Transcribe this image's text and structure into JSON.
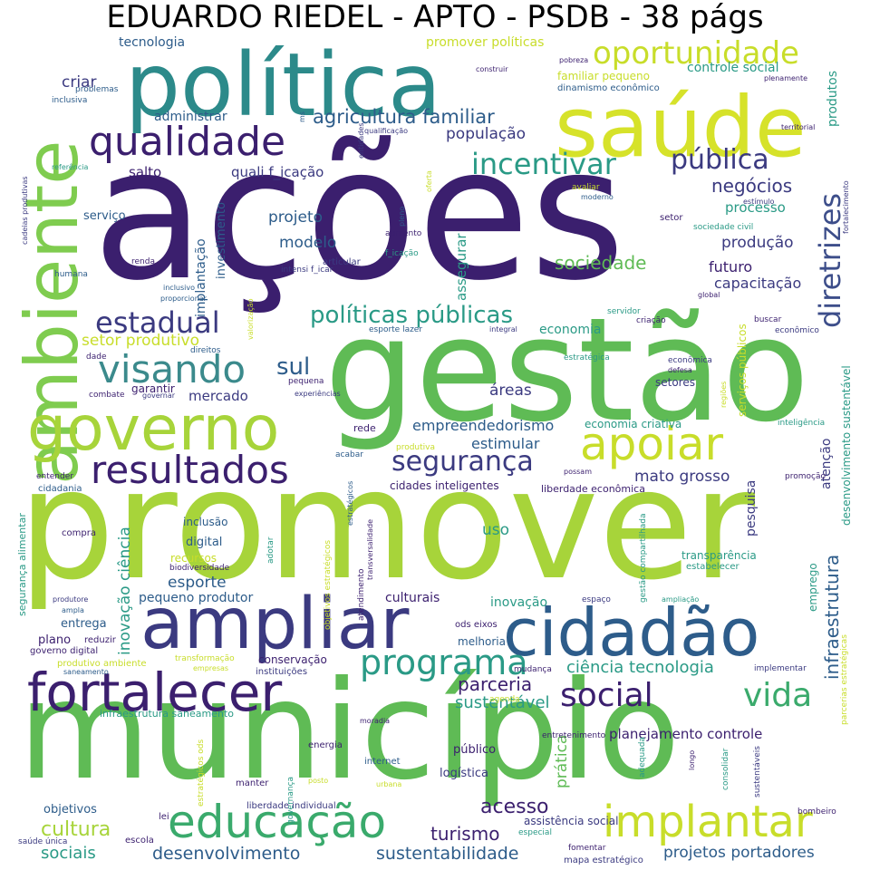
{
  "title": "EDUARDO RIEDEL - APTO - PSDB - 38 págs",
  "palette": {
    "background": "#ffffff",
    "colors": [
      "#440154",
      "#482878",
      "#3e4a89",
      "#31688e",
      "#26828e",
      "#1f9e89",
      "#35b779",
      "#6ece58",
      "#b5de2b",
      "#fde725"
    ]
  },
  "words": [
    {
      "text": "ações",
      "color": "#3b1f6e"
    },
    {
      "text": "promover",
      "color": "#a7d43a"
    },
    {
      "text": "município",
      "color": "#5fbb55"
    },
    {
      "text": "gestão",
      "color": "#5fbb55"
    },
    {
      "text": "política",
      "color": "#2c8a8a"
    },
    {
      "text": "saúde",
      "color": "#d6e22a"
    },
    {
      "text": "ambiente",
      "color": "#7fcc4f"
    },
    {
      "text": "governo",
      "color": "#a7d43a"
    },
    {
      "text": "ampliar",
      "color": "#3b3a80"
    },
    {
      "text": "cidadão",
      "color": "#2d5c8a"
    },
    {
      "text": "fortalecer",
      "color": "#3b1f6e"
    },
    {
      "text": "educação",
      "color": "#3aaa6c"
    },
    {
      "text": "implantar",
      "color": "#c8dd2a"
    },
    {
      "text": "qualidade",
      "color": "#3b1f6e"
    },
    {
      "text": "oportunidade",
      "color": "#c8dd2a"
    },
    {
      "text": "apoiar",
      "color": "#c8dd2a"
    },
    {
      "text": "visando",
      "color": "#3b8a8c"
    },
    {
      "text": "resultados",
      "color": "#3b1f6e"
    },
    {
      "text": "programa",
      "color": "#2a9a86"
    },
    {
      "text": "incentivar",
      "color": "#2a9a86"
    },
    {
      "text": "diretrizes",
      "color": "#3d4e8a"
    },
    {
      "text": "pública",
      "color": "#3b3a80"
    },
    {
      "text": "estadual",
      "color": "#3b3a80"
    },
    {
      "text": "segurança",
      "color": "#3b3a80"
    },
    {
      "text": "social",
      "color": "#3b1f6e"
    },
    {
      "text": "vida",
      "color": "#3aaa6c"
    },
    {
      "text": "políticas públicas",
      "color": "#2a9a86"
    },
    {
      "text": "agricultura familiar",
      "color": "#2d5c8a"
    },
    {
      "text": "sul",
      "color": "#2d5c8a"
    },
    {
      "text": "negócios",
      "color": "#3b3a80"
    },
    {
      "text": "sociedade",
      "color": "#5fbb55"
    },
    {
      "text": "parceria",
      "color": "#3b1f6e"
    },
    {
      "text": "ciência tecnologia",
      "color": "#2a9a86"
    },
    {
      "text": "infraestrutura",
      "color": "#2d5c8a"
    },
    {
      "text": "cultura",
      "color": "#a7d43a"
    },
    {
      "text": "turismo",
      "color": "#3b1f6e"
    },
    {
      "text": "acesso",
      "color": "#3b1f6e"
    },
    {
      "text": "desenvolvimento",
      "color": "#2d5c8a"
    },
    {
      "text": "sustentabilidade",
      "color": "#2d5c8a"
    },
    {
      "text": "projetos portadores",
      "color": "#2d5c8a"
    },
    {
      "text": "sociais",
      "color": "#2a9a86"
    },
    {
      "text": "assistência social",
      "color": "#3b3a80"
    },
    {
      "text": "sustentável",
      "color": "#2a9a86"
    },
    {
      "text": "planejamento controle",
      "color": "#3b1f6e"
    },
    {
      "text": "inovação ciência",
      "color": "#2a9a86"
    },
    {
      "text": "esporte",
      "color": "#2d5c8a"
    },
    {
      "text": "empreendedorismo",
      "color": "#2d5c8a"
    },
    {
      "text": "estimular",
      "color": "#2d5c8a"
    },
    {
      "text": "mato grosso",
      "color": "#3b3a80"
    },
    {
      "text": "mercado",
      "color": "#3b3a80"
    },
    {
      "text": "setor produtivo",
      "color": "#c8dd2a"
    },
    {
      "text": "economia",
      "color": "#2a9a86"
    },
    {
      "text": "áreas",
      "color": "#3b3a80"
    },
    {
      "text": "projeto",
      "color": "#2d5c8a"
    },
    {
      "text": "modelo",
      "color": "#2d5c8a"
    },
    {
      "text": "produção",
      "color": "#3b3a80"
    },
    {
      "text": "processo",
      "color": "#2a9a86"
    },
    {
      "text": "futuro",
      "color": "#3b1f6e"
    },
    {
      "text": "capacitação",
      "color": "#3b3a80"
    },
    {
      "text": "população",
      "color": "#3b3a80"
    },
    {
      "text": "salto",
      "color": "#3b1f6e"
    },
    {
      "text": "quali f_icação",
      "color": "#3b3a80"
    },
    {
      "text": "criar",
      "color": "#3b3a80"
    },
    {
      "text": "tecnologia",
      "color": "#2d5c8a"
    },
    {
      "text": "administrar",
      "color": "#2d5c8a"
    },
    {
      "text": "controle social",
      "color": "#2a9a86"
    },
    {
      "text": "produtos",
      "color": "#2a9a86"
    },
    {
      "text": "promover políticas",
      "color": "#c8dd2a"
    },
    {
      "text": "familiar pequeno",
      "color": "#c8dd2a"
    },
    {
      "text": "dinamismo econômico",
      "color": "#2d5c8a"
    },
    {
      "text": "assegurar",
      "color": "#2a9a86"
    },
    {
      "text": "implantação",
      "color": "#2d5c8a"
    },
    {
      "text": "investimento",
      "color": "#2d5c8a"
    },
    {
      "text": "serviço",
      "color": "#2d5c8a"
    },
    {
      "text": "garantir",
      "color": "#3b1f6e"
    },
    {
      "text": "uso",
      "color": "#2a9a86"
    },
    {
      "text": "pesquisa",
      "color": "#3b3a80"
    },
    {
      "text": "atenção",
      "color": "#3b3a80"
    },
    {
      "text": "inclusão",
      "color": "#2d5c8a"
    },
    {
      "text": "digital",
      "color": "#2d5c8a"
    },
    {
      "text": "recursos",
      "color": "#c8dd2a"
    },
    {
      "text": "biodiversidade",
      "color": "#3b1f6e"
    },
    {
      "text": "pequeno produtor",
      "color": "#2d5c8a"
    },
    {
      "text": "entrega",
      "color": "#2d5c8a"
    },
    {
      "text": "plano",
      "color": "#3b1f6e"
    },
    {
      "text": "reduzir",
      "color": "#3b1f6e"
    },
    {
      "text": "governo digital",
      "color": "#3b1f6e"
    },
    {
      "text": "culturais",
      "color": "#3b1f6e"
    },
    {
      "text": "inovação",
      "color": "#2a9a86"
    },
    {
      "text": "conservação",
      "color": "#3b1f6e"
    },
    {
      "text": "instituições",
      "color": "#3b3a80"
    },
    {
      "text": "melhoria",
      "color": "#2d5c8a"
    },
    {
      "text": "ods eixos",
      "color": "#3b1f6e"
    },
    {
      "text": "transparência",
      "color": "#2a9a86"
    },
    {
      "text": "estabelecer",
      "color": "#2a9a86"
    },
    {
      "text": "emprego",
      "color": "#2a9a86"
    },
    {
      "text": "objetivos",
      "color": "#2d5c8a"
    },
    {
      "text": "público",
      "color": "#3b1f6e"
    },
    {
      "text": "logística",
      "color": "#3b3a80"
    },
    {
      "text": "prática",
      "color": "#5fbb55"
    },
    {
      "text": "cidades inteligentes",
      "color": "#3b1f6e"
    },
    {
      "text": "liberdade econômica",
      "color": "#3b1f6e"
    },
    {
      "text": "economia criativa",
      "color": "#2a9a86"
    },
    {
      "text": "setores",
      "color": "#3b3a80"
    },
    {
      "text": "serviços públicos",
      "color": "#c8dd2a"
    },
    {
      "text": "desenvolvimento sustentável",
      "color": "#2a9a86"
    },
    {
      "text": "segurança alimentar",
      "color": "#2a9a86"
    },
    {
      "text": "infraestrutura saneamento",
      "color": "#2a9a86"
    },
    {
      "text": "saúde única",
      "color": "#3b3a80"
    },
    {
      "text": "escola",
      "color": "#3b1f6e"
    },
    {
      "text": "lei",
      "color": "#3b1f6e"
    },
    {
      "text": "bombeiro",
      "color": "#3b1f6e"
    },
    {
      "text": "mapa estratégico",
      "color": "#3b3a80"
    },
    {
      "text": "fomentar",
      "color": "#3b1f6e"
    },
    {
      "text": "especial",
      "color": "#2a9a86"
    },
    {
      "text": "manter",
      "color": "#3b1f6e"
    },
    {
      "text": "liberdade individual",
      "color": "#3b3a80"
    },
    {
      "text": "internet",
      "color": "#2d5c8a"
    },
    {
      "text": "energia",
      "color": "#3b1f6e"
    },
    {
      "text": "moradia",
      "color": "#3b1f6e"
    },
    {
      "text": "entretenimento",
      "color": "#3b1f6e"
    },
    {
      "text": "mudança",
      "color": "#3b1f6e"
    },
    {
      "text": "implementar",
      "color": "#3b3a80"
    },
    {
      "text": "agenda",
      "color": "#c8dd2a"
    },
    {
      "text": "rede",
      "color": "#3b1f6e"
    },
    {
      "text": "acabar",
      "color": "#2d5c8a"
    },
    {
      "text": "produtiva",
      "color": "#c8dd2a"
    },
    {
      "text": "possam",
      "color": "#3b1f6e"
    },
    {
      "text": "promoção",
      "color": "#3b1f6e"
    },
    {
      "text": "inteligência",
      "color": "#2a9a86"
    },
    {
      "text": "pequena",
      "color": "#3b1f6e"
    },
    {
      "text": "experiências",
      "color": "#3b3a80"
    },
    {
      "text": "esporte lazer",
      "color": "#2d5c8a"
    },
    {
      "text": "integral",
      "color": "#3b3a80"
    },
    {
      "text": "estratégica",
      "color": "#2a9a86"
    },
    {
      "text": "econômica",
      "color": "#3b3a80"
    },
    {
      "text": "defesa",
      "color": "#3b1f6e"
    },
    {
      "text": "servidor",
      "color": "#2a9a86"
    },
    {
      "text": "criação",
      "color": "#3b1f6e"
    },
    {
      "text": "buscar",
      "color": "#3b1f6e"
    },
    {
      "text": "econômico",
      "color": "#3b3a80"
    },
    {
      "text": "global",
      "color": "#3b1f6e"
    },
    {
      "text": "setor",
      "color": "#3b1f6e"
    },
    {
      "text": "sociedade civil",
      "color": "#2a9a86"
    },
    {
      "text": "estímulo",
      "color": "#3b3a80"
    },
    {
      "text": "avaliar",
      "color": "#c8dd2a"
    },
    {
      "text": "moderno",
      "color": "#2d5c8a"
    },
    {
      "text": "territorial",
      "color": "#3b1f6e"
    },
    {
      "text": "plenamente",
      "color": "#3b1f6e"
    },
    {
      "text": "pobreza",
      "color": "#3b1f6e"
    },
    {
      "text": "construir",
      "color": "#3b1f6e"
    },
    {
      "text": "qualificação",
      "color": "#3b3a80"
    },
    {
      "text": "oferta",
      "color": "#c8dd2a"
    },
    {
      "text": "entidades",
      "color": "#3b3a80"
    },
    {
      "text": "pleno",
      "color": "#2d5c8a"
    },
    {
      "text": "aumento",
      "color": "#3b1f6e"
    },
    {
      "text": "f_icação",
      "color": "#2a9a86"
    },
    {
      "text": "articular",
      "color": "#3b3a80"
    },
    {
      "text": "intensi f_icar",
      "color": "#3b3a80"
    },
    {
      "text": "problemas",
      "color": "#2d5c8a"
    },
    {
      "text": "inclusiva",
      "color": "#2d5c8a"
    },
    {
      "text": "referência",
      "color": "#2a9a86"
    },
    {
      "text": "cadeias produtivas",
      "color": "#3b3a80"
    },
    {
      "text": "humana",
      "color": "#2d5c8a"
    },
    {
      "text": "renda",
      "color": "#3b1f6e"
    },
    {
      "text": "inclusivo",
      "color": "#2d5c8a"
    },
    {
      "text": "proporcionar",
      "color": "#2d5c8a"
    },
    {
      "text": "valorização",
      "color": "#c8dd2a"
    },
    {
      "text": "direitos",
      "color": "#2d5c8a"
    },
    {
      "text": "dade",
      "color": "#3b1f6e"
    },
    {
      "text": "combate",
      "color": "#3b1f6e"
    },
    {
      "text": "governar",
      "color": "#3b3a80"
    },
    {
      "text": "entender",
      "color": "#3b1f6e"
    },
    {
      "text": "cidadania",
      "color": "#2d5c8a"
    },
    {
      "text": "compra",
      "color": "#3b1f6e"
    },
    {
      "text": "produtore",
      "color": "#3b3a80"
    },
    {
      "text": "ampla",
      "color": "#2d5c8a"
    },
    {
      "text": "produtivo ambiente",
      "color": "#c8dd2a"
    },
    {
      "text": "saneamento",
      "color": "#2d5c8a"
    },
    {
      "text": "empresas",
      "color": "#c8dd2a"
    },
    {
      "text": "transformação",
      "color": "#c8dd2a"
    },
    {
      "text": "adotar",
      "color": "#2a9a86"
    },
    {
      "text": "transversalidade",
      "color": "#3b1f6e"
    },
    {
      "text": "objetivos estratégicos",
      "color": "#c8dd2a"
    },
    {
      "text": "atendimento",
      "color": "#3b1f6e"
    },
    {
      "text": "estratégicos",
      "color": "#2d5c8a"
    },
    {
      "text": "gestão compartilhada",
      "color": "#2a9a86"
    },
    {
      "text": "espaço",
      "color": "#3b3a80"
    },
    {
      "text": "ampliação",
      "color": "#2a9a86"
    },
    {
      "text": "parcerias estratégicas",
      "color": "#c8dd2a"
    },
    {
      "text": "estratégicos ods",
      "color": "#c8dd2a"
    },
    {
      "text": "governança",
      "color": "#2a9a86"
    },
    {
      "text": "posto",
      "color": "#c8dd2a"
    },
    {
      "text": "urbana",
      "color": "#c8dd2a"
    },
    {
      "text": "adequada",
      "color": "#2a9a86"
    },
    {
      "text": "longo",
      "color": "#3b1f6e"
    },
    {
      "text": "consolidar",
      "color": "#2a9a86"
    },
    {
      "text": "sustentáveis",
      "color": "#3b3a80"
    },
    {
      "text": "regiões",
      "color": "#c8dd2a"
    },
    {
      "text": "fortalecimento",
      "color": "#3b3a80"
    },
    {
      "text": "ms",
      "color": "#2d5c8a"
    }
  ]
}
